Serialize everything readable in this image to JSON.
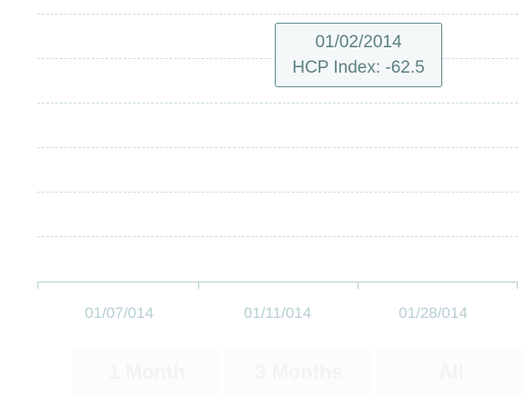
{
  "chart_data": {
    "type": "line",
    "x_ticks": [
      "01/07/014",
      "01/11/014",
      "01/28/014"
    ],
    "tooltip": {
      "date": "01/02/2014",
      "label": "HCP Index: -62.5"
    },
    "grid": true
  },
  "range_selector": {
    "buttons": [
      "1 Month",
      "3 Months",
      "All"
    ]
  }
}
